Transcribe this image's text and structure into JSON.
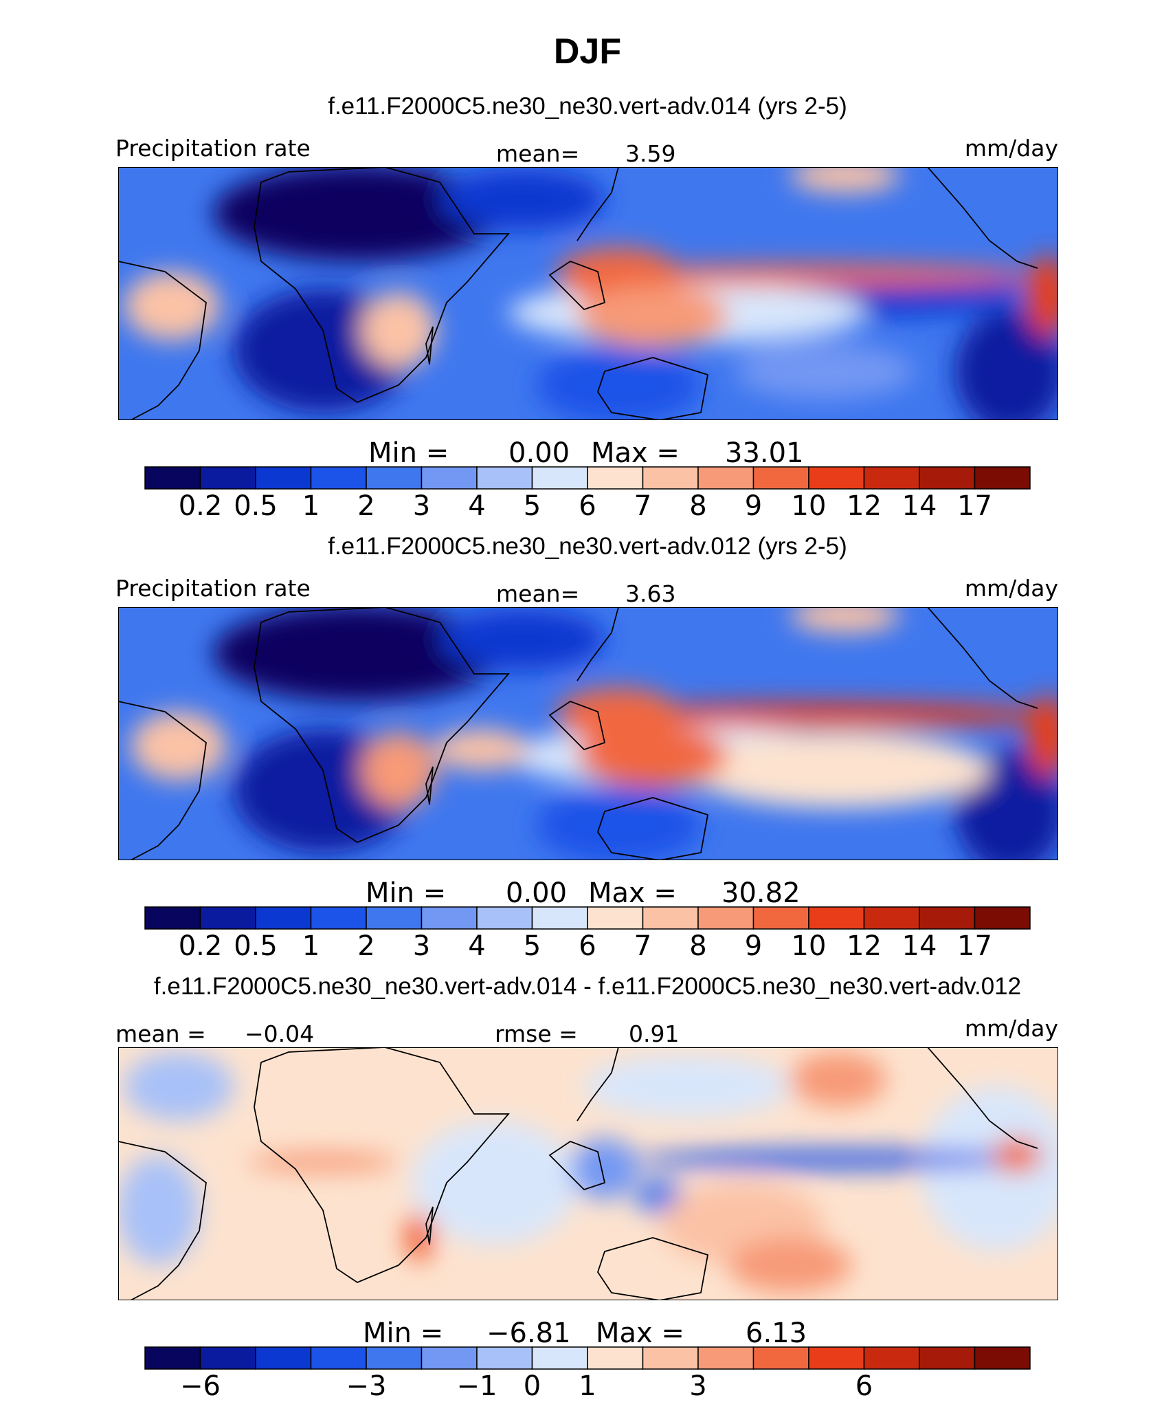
{
  "chart_data": [
    {
      "type": "heatmap",
      "title": "f.e11.F2000C5.ne30_ne30.vert-adv.014 (yrs 2-5)",
      "variable": "Precipitation rate",
      "units": "mm/day",
      "stats": {
        "mean_label": "mean=",
        "mean": "3.59",
        "min_label": "Min =",
        "min": "0.00",
        "max_label": "Max =",
        "max": "33.01"
      },
      "colorbar_ticks": [
        "0.2",
        "0.5",
        "1",
        "2",
        "3",
        "4",
        "5",
        "6",
        "7",
        "8",
        "9",
        "10",
        "12",
        "14",
        "17"
      ],
      "levels": [
        0.2,
        0.5,
        1,
        2,
        3,
        4,
        5,
        6,
        7,
        8,
        9,
        10,
        12,
        14,
        17
      ]
    },
    {
      "type": "heatmap",
      "title": "f.e11.F2000C5.ne30_ne30.vert-adv.012 (yrs 2-5)",
      "variable": "Precipitation rate",
      "units": "mm/day",
      "stats": {
        "mean_label": "mean=",
        "mean": "3.63",
        "min_label": "Min =",
        "min": "0.00",
        "max_label": "Max =",
        "max": "30.82"
      },
      "colorbar_ticks": [
        "0.2",
        "0.5",
        "1",
        "2",
        "3",
        "4",
        "5",
        "6",
        "7",
        "8",
        "9",
        "10",
        "12",
        "14",
        "17"
      ],
      "levels": [
        0.2,
        0.5,
        1,
        2,
        3,
        4,
        5,
        6,
        7,
        8,
        9,
        10,
        12,
        14,
        17
      ]
    },
    {
      "type": "heatmap",
      "title": "f.e11.F2000C5.ne30_ne30.vert-adv.014 - f.e11.F2000C5.ne30_ne30.vert-adv.012",
      "units": "mm/day",
      "stats": {
        "mean_label": "mean =",
        "mean": "−0.04",
        "rmse_label": "rmse =",
        "rmse": "0.91",
        "min_label": "Min =",
        "min": "−6.81",
        "max_label": "Max =",
        "max": "6.13"
      },
      "colorbar_ticks": [
        "−6",
        "−3",
        "−1",
        "0",
        "1",
        "3",
        "6"
      ],
      "colorbar_tick_boundaries": [
        1,
        4,
        6,
        7,
        8,
        10,
        13
      ]
    }
  ],
  "figure": {
    "title": "DJF"
  },
  "palette": [
    "#08055e",
    "#0a1ba0",
    "#0b38d0",
    "#1c53e8",
    "#3f77ef",
    "#7398f3",
    "#a8c1f8",
    "#d8e6fb",
    "#fde3cf",
    "#fbc2a6",
    "#f79a77",
    "#f1683f",
    "#e83d18",
    "#c92a0f",
    "#a51a08",
    "#7a0c04"
  ]
}
